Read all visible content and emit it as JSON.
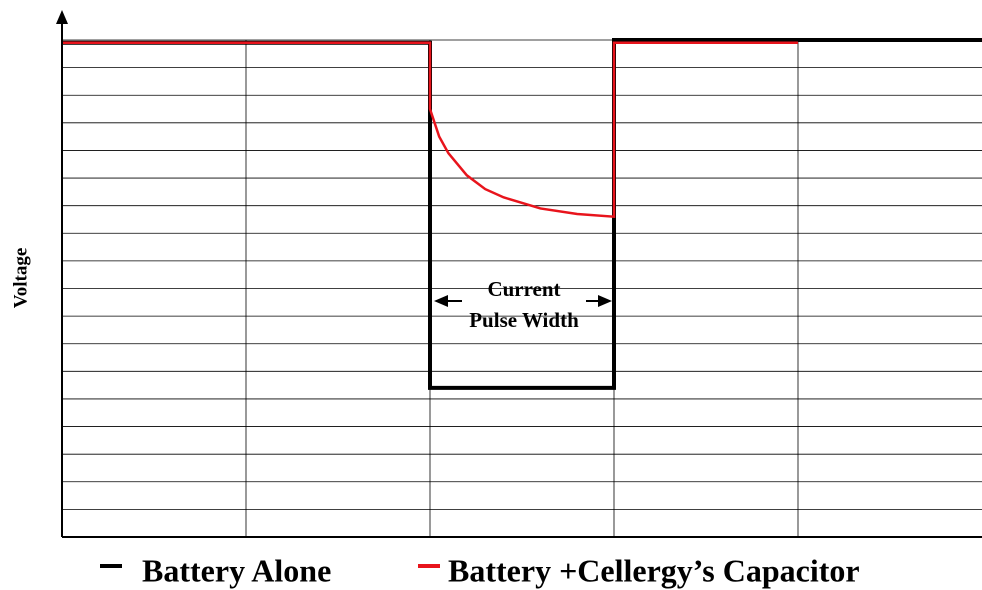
{
  "chart_data": {
    "type": "line",
    "y_label": "Voltage",
    "annotations": [
      "Current",
      "Pulse Width"
    ],
    "xlim": [
      0,
      5
    ],
    "xticks": [
      1,
      2,
      3,
      4
    ],
    "ylim": [
      0,
      18
    ],
    "yticks": [
      1,
      2,
      3,
      4,
      5,
      6,
      7,
      8,
      9,
      10,
      11,
      12,
      13,
      14,
      15,
      16,
      17,
      18
    ],
    "grid": true,
    "legend": "bottom",
    "series": [
      {
        "name": "Battery Alone",
        "color": "#000000",
        "x": [
          0,
          2,
          2,
          3,
          3,
          5
        ],
        "values": [
          17.9,
          17.9,
          5.4,
          5.4,
          18,
          18
        ]
      },
      {
        "name": "Battery +Cellergy’s Capacitor",
        "color": "#e8141c",
        "x": [
          0,
          2,
          2,
          2.05,
          2.1,
          2.2,
          2.3,
          2.4,
          2.6,
          2.8,
          3,
          3,
          4
        ],
        "values": [
          17.9,
          17.9,
          15.5,
          14.5,
          13.9,
          13.1,
          12.6,
          12.3,
          11.9,
          11.7,
          11.6,
          17.9,
          17.9
        ]
      }
    ]
  }
}
